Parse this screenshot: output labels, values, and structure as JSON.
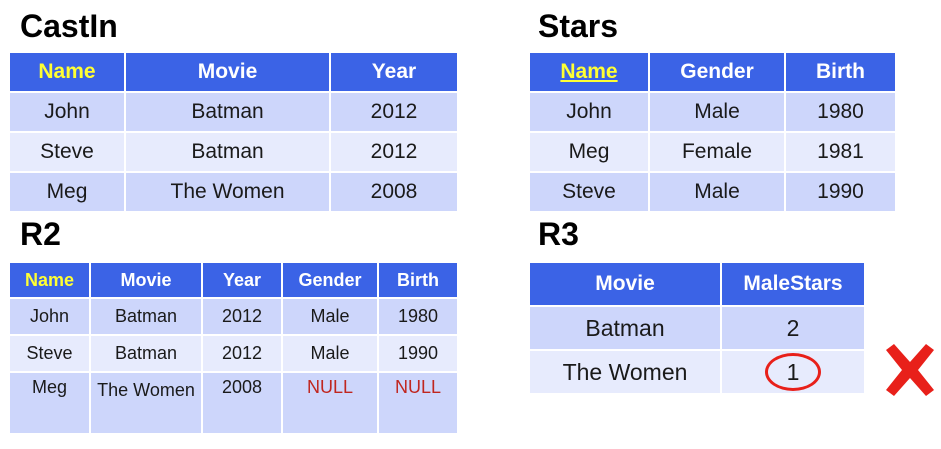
{
  "castin": {
    "title": "CastIn",
    "headers": [
      "Name",
      "Movie",
      "Year"
    ],
    "rows": [
      [
        "John",
        "Batman",
        "2012"
      ],
      [
        "Steve",
        "Batman",
        "2012"
      ],
      [
        "Meg",
        "The Women",
        "2008"
      ]
    ]
  },
  "stars": {
    "title": "Stars",
    "headers": [
      "Name",
      "Gender",
      "Birth"
    ],
    "rows": [
      [
        "John",
        "Male",
        "1980"
      ],
      [
        "Meg",
        "Female",
        "1981"
      ],
      [
        "Steve",
        "Male",
        "1990"
      ]
    ]
  },
  "r2": {
    "title": "R2",
    "headers": [
      "Name",
      "Movie",
      "Year",
      "Gender",
      "Birth"
    ],
    "rows": [
      [
        "John",
        "Batman",
        "2012",
        "Male",
        "1980"
      ],
      [
        "Steve",
        "Batman",
        "2012",
        "Male",
        "1990"
      ],
      [
        "Meg",
        "The Women",
        "2008",
        "NULL",
        "NULL"
      ]
    ]
  },
  "r3": {
    "title": "R3",
    "headers": [
      "Movie",
      "MaleStars"
    ],
    "rows": [
      [
        "Batman",
        "2"
      ],
      [
        "The Women",
        "1"
      ]
    ]
  },
  "colors": {
    "header_bg": "#3b63e6",
    "key_text": "#ffff33",
    "row_odd": "#cdd6fb",
    "row_even": "#e7ebfd",
    "null_text": "#c0261f",
    "mark": "#e8201a"
  },
  "icons": {
    "wrong_mark": "red-x-icon",
    "highlight": "red-circle"
  }
}
